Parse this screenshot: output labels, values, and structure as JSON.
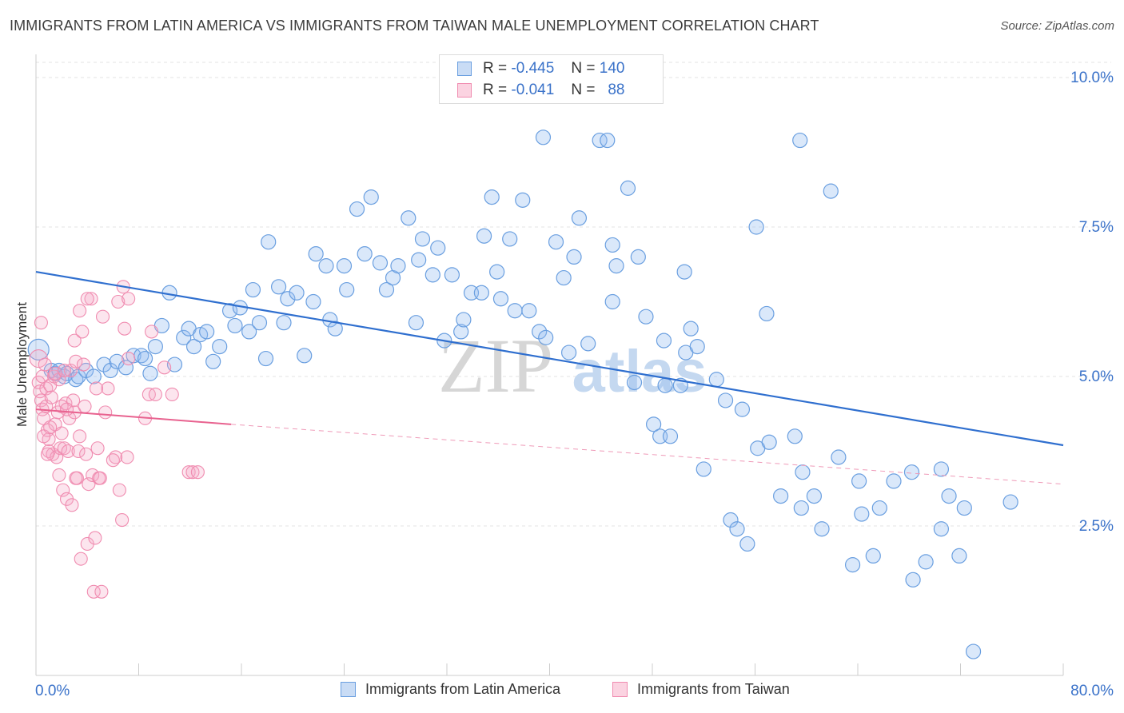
{
  "header": {
    "title": "IMMIGRANTS FROM LATIN AMERICA VS IMMIGRANTS FROM TAIWAN MALE UNEMPLOYMENT CORRELATION CHART",
    "source": "Source: ZipAtlas.com"
  },
  "legend_top": {
    "rows": [
      {
        "r_label": "R =",
        "r_value": "-0.445",
        "n_label": "N =",
        "n_value": "140",
        "color": "#6a9fe0"
      },
      {
        "r_label": "R =",
        "r_value": "-0.041",
        "n_label": "N =",
        "n_value": "88",
        "color": "#f08cb0"
      }
    ]
  },
  "legend_bottom": {
    "items": [
      {
        "label": "Immigrants from Latin America",
        "color": "#6a9fe0"
      },
      {
        "label": "Immigrants from Taiwan",
        "color": "#f08cb0"
      }
    ]
  },
  "watermark": {
    "zip": "ZIP",
    "atlas": "atlas"
  },
  "chart_data": {
    "type": "scatter",
    "title": "IMMIGRANTS FROM LATIN AMERICA VS IMMIGRANTS FROM TAIWAN MALE UNEMPLOYMENT CORRELATION CHART",
    "xlabel": "",
    "ylabel": "Male Unemployment",
    "xlim": [
      0,
      80
    ],
    "ylim": [
      0,
      10.5
    ],
    "x_tick_labels": [
      "0.0%",
      "80.0%"
    ],
    "y_ticks": [
      2.5,
      5.0,
      7.5,
      10.0
    ],
    "y_tick_labels": [
      "2.5%",
      "5.0%",
      "7.5%",
      "10.0%"
    ],
    "grid": true,
    "legend_position": "top-center",
    "series": [
      {
        "name": "Immigrants from Latin America",
        "color": "#6a9fe0",
        "trend": {
          "x": [
            0,
            80
          ],
          "y": [
            6.75,
            3.85
          ]
        },
        "points": [
          [
            0.2,
            5.45
          ],
          [
            1.2,
            5.1
          ],
          [
            1.5,
            5.05
          ],
          [
            1.8,
            5.1
          ],
          [
            2.2,
            5.0
          ],
          [
            2.4,
            5.05
          ],
          [
            3.1,
            4.95
          ],
          [
            3.3,
            5.0
          ],
          [
            3.9,
            5.1
          ],
          [
            4.5,
            5.0
          ],
          [
            5.3,
            5.2
          ],
          [
            5.8,
            5.1
          ],
          [
            6.3,
            5.25
          ],
          [
            7.0,
            5.15
          ],
          [
            7.6,
            5.35
          ],
          [
            8.2,
            5.35
          ],
          [
            8.5,
            5.3
          ],
          [
            8.9,
            5.05
          ],
          [
            9.3,
            5.5
          ],
          [
            9.8,
            5.85
          ],
          [
            10.4,
            6.4
          ],
          [
            10.8,
            5.2
          ],
          [
            11.5,
            5.65
          ],
          [
            11.9,
            5.8
          ],
          [
            12.3,
            5.5
          ],
          [
            12.8,
            5.7
          ],
          [
            13.3,
            5.75
          ],
          [
            13.8,
            5.25
          ],
          [
            14.3,
            5.5
          ],
          [
            15.1,
            6.1
          ],
          [
            15.5,
            5.85
          ],
          [
            15.9,
            6.15
          ],
          [
            16.6,
            5.75
          ],
          [
            16.9,
            6.45
          ],
          [
            17.4,
            5.9
          ],
          [
            17.9,
            5.3
          ],
          [
            18.1,
            7.25
          ],
          [
            18.9,
            6.5
          ],
          [
            19.3,
            5.9
          ],
          [
            19.6,
            6.3
          ],
          [
            20.3,
            6.4
          ],
          [
            20.9,
            5.35
          ],
          [
            21.6,
            6.25
          ],
          [
            21.8,
            7.05
          ],
          [
            22.6,
            6.85
          ],
          [
            22.9,
            5.95
          ],
          [
            23.3,
            5.8
          ],
          [
            24.0,
            6.85
          ],
          [
            24.2,
            6.45
          ],
          [
            25.0,
            7.8
          ],
          [
            25.6,
            7.05
          ],
          [
            26.1,
            8.0
          ],
          [
            26.8,
            6.9
          ],
          [
            27.3,
            6.45
          ],
          [
            27.8,
            6.65
          ],
          [
            28.2,
            6.85
          ],
          [
            29.0,
            7.65
          ],
          [
            29.6,
            5.9
          ],
          [
            29.8,
            6.95
          ],
          [
            30.1,
            7.3
          ],
          [
            30.9,
            6.7
          ],
          [
            31.3,
            7.15
          ],
          [
            31.8,
            5.6
          ],
          [
            32.4,
            6.7
          ],
          [
            33.1,
            5.75
          ],
          [
            33.3,
            5.95
          ],
          [
            33.9,
            6.4
          ],
          [
            34.7,
            6.4
          ],
          [
            34.9,
            7.35
          ],
          [
            35.5,
            8.0
          ],
          [
            35.9,
            6.75
          ],
          [
            36.2,
            6.3
          ],
          [
            36.9,
            7.3
          ],
          [
            37.3,
            6.1
          ],
          [
            37.9,
            7.95
          ],
          [
            38.4,
            6.1
          ],
          [
            39.2,
            5.75
          ],
          [
            39.5,
            9.0
          ],
          [
            39.7,
            5.65
          ],
          [
            40.5,
            7.25
          ],
          [
            41.1,
            6.65
          ],
          [
            41.5,
            5.4
          ],
          [
            41.9,
            7.0
          ],
          [
            42.3,
            7.65
          ],
          [
            43.0,
            5.55
          ],
          [
            43.9,
            8.95
          ],
          [
            44.5,
            8.95
          ],
          [
            44.9,
            6.25
          ],
          [
            44.9,
            7.2
          ],
          [
            45.2,
            6.85
          ],
          [
            46.1,
            8.15
          ],
          [
            46.6,
            4.9
          ],
          [
            46.9,
            7.0
          ],
          [
            47.5,
            6.0
          ],
          [
            48.1,
            4.2
          ],
          [
            48.6,
            4.0
          ],
          [
            48.9,
            5.6
          ],
          [
            49.0,
            4.85
          ],
          [
            49.4,
            4.0
          ],
          [
            50.2,
            4.85
          ],
          [
            50.5,
            6.75
          ],
          [
            50.6,
            5.4
          ],
          [
            51.0,
            5.8
          ],
          [
            51.5,
            5.5
          ],
          [
            52.0,
            3.45
          ],
          [
            53.0,
            4.95
          ],
          [
            53.7,
            4.6
          ],
          [
            54.1,
            2.6
          ],
          [
            54.6,
            2.45
          ],
          [
            55.0,
            4.45
          ],
          [
            55.4,
            2.2
          ],
          [
            56.1,
            7.5
          ],
          [
            56.2,
            3.8
          ],
          [
            56.9,
            6.05
          ],
          [
            57.1,
            3.9
          ],
          [
            58.0,
            3.0
          ],
          [
            59.5,
            8.95
          ],
          [
            59.1,
            4.0
          ],
          [
            59.6,
            2.8
          ],
          [
            59.7,
            3.4
          ],
          [
            60.6,
            3.0
          ],
          [
            61.2,
            2.45
          ],
          [
            61.9,
            8.1
          ],
          [
            62.5,
            3.65
          ],
          [
            63.6,
            1.85
          ],
          [
            64.1,
            3.25
          ],
          [
            64.3,
            2.7
          ],
          [
            65.2,
            2.0
          ],
          [
            65.7,
            2.8
          ],
          [
            66.8,
            3.25
          ],
          [
            68.3,
            1.6
          ],
          [
            68.2,
            3.4
          ],
          [
            69.3,
            1.9
          ],
          [
            70.5,
            3.45
          ],
          [
            70.5,
            2.45
          ],
          [
            71.1,
            3.0
          ],
          [
            71.9,
            2.0
          ],
          [
            72.3,
            2.8
          ],
          [
            73.0,
            0.4
          ],
          [
            75.9,
            2.9
          ]
        ]
      },
      {
        "name": "Immigrants from Taiwan",
        "color": "#f08cb0",
        "trend": {
          "x": [
            0,
            15.2
          ],
          "y": [
            4.45,
            4.2
          ]
        },
        "trend_dashed": {
          "x": [
            15.2,
            80
          ],
          "y": [
            4.2,
            3.2
          ]
        },
        "points": [
          [
            0.2,
            5.3
          ],
          [
            0.2,
            4.9
          ],
          [
            0.3,
            4.75
          ],
          [
            0.4,
            5.9
          ],
          [
            0.4,
            4.6
          ],
          [
            0.5,
            4.45
          ],
          [
            0.5,
            5.0
          ],
          [
            0.6,
            4.3
          ],
          [
            0.7,
            5.2
          ],
          [
            0.8,
            4.8
          ],
          [
            0.8,
            4.5
          ],
          [
            0.9,
            4.1
          ],
          [
            1.0,
            3.95
          ],
          [
            1.0,
            3.75
          ],
          [
            1.1,
            4.85
          ],
          [
            1.2,
            4.65
          ],
          [
            1.3,
            3.7
          ],
          [
            1.4,
            5.0
          ],
          [
            1.5,
            4.2
          ],
          [
            1.6,
            3.65
          ],
          [
            1.7,
            4.4
          ],
          [
            1.8,
            4.95
          ],
          [
            1.8,
            3.35
          ],
          [
            1.9,
            3.8
          ],
          [
            2.0,
            4.05
          ],
          [
            2.1,
            3.1
          ],
          [
            2.2,
            3.8
          ],
          [
            2.3,
            4.55
          ],
          [
            2.4,
            2.95
          ],
          [
            2.5,
            3.75
          ],
          [
            2.6,
            4.3
          ],
          [
            2.7,
            5.1
          ],
          [
            2.8,
            2.85
          ],
          [
            2.9,
            4.6
          ],
          [
            3.0,
            4.4
          ],
          [
            3.1,
            5.25
          ],
          [
            3.2,
            3.3
          ],
          [
            3.3,
            3.75
          ],
          [
            3.4,
            6.1
          ],
          [
            3.5,
            1.95
          ],
          [
            3.6,
            5.75
          ],
          [
            3.7,
            5.2
          ],
          [
            3.8,
            4.5
          ],
          [
            3.9,
            3.7
          ],
          [
            4.0,
            2.2
          ],
          [
            4.1,
            3.2
          ],
          [
            4.3,
            6.3
          ],
          [
            4.4,
            3.35
          ],
          [
            4.5,
            1.4
          ],
          [
            4.6,
            2.3
          ],
          [
            4.8,
            3.8
          ],
          [
            4.9,
            3.3
          ],
          [
            5.2,
            6.0
          ],
          [
            5.4,
            4.4
          ],
          [
            6.2,
            3.65
          ],
          [
            6.4,
            6.25
          ],
          [
            6.7,
            2.6
          ],
          [
            6.8,
            6.5
          ],
          [
            6.9,
            5.8
          ],
          [
            7.1,
            3.65
          ],
          [
            7.2,
            6.3
          ],
          [
            7.2,
            5.3
          ],
          [
            8.5,
            4.3
          ],
          [
            8.8,
            4.7
          ],
          [
            9.0,
            5.75
          ],
          [
            9.3,
            4.7
          ],
          [
            10.0,
            5.15
          ],
          [
            10.6,
            4.7
          ],
          [
            11.9,
            3.4
          ],
          [
            12.2,
            3.4
          ],
          [
            12.6,
            3.4
          ],
          [
            6.5,
            3.1
          ],
          [
            4.0,
            6.3
          ],
          [
            3.0,
            5.6
          ],
          [
            1.5,
            5.05
          ],
          [
            2.2,
            5.1
          ],
          [
            2.0,
            4.5
          ],
          [
            3.1,
            3.3
          ],
          [
            5.0,
            3.3
          ],
          [
            5.1,
            1.4
          ],
          [
            5.6,
            4.8
          ],
          [
            0.6,
            4.0
          ],
          [
            1.1,
            4.15
          ],
          [
            2.4,
            4.45
          ],
          [
            4.7,
            4.8
          ],
          [
            3.4,
            4.0
          ],
          [
            6.0,
            3.6
          ],
          [
            0.9,
            3.7
          ]
        ]
      }
    ]
  }
}
